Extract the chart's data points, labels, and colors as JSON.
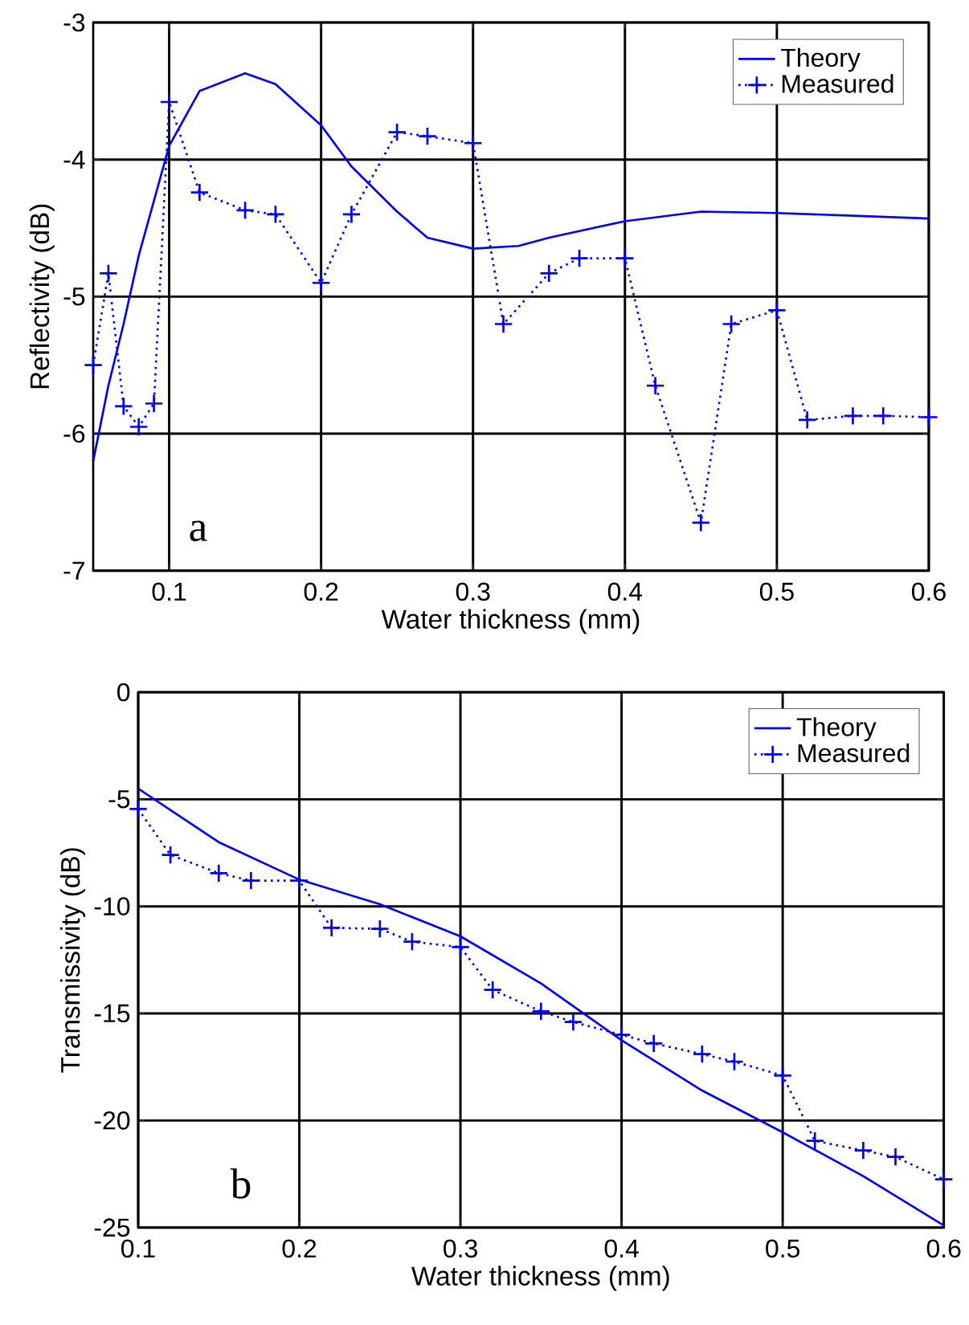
{
  "chart_data": [
    {
      "type": "line",
      "xlabel": "Water thickness (mm)",
      "ylabel": "Reflectivity (dB)",
      "xlim": [
        0.05,
        0.6
      ],
      "ylim": [
        -7,
        -3
      ],
      "xticks": [
        0.1,
        0.2,
        0.3,
        0.4,
        0.5,
        0.6
      ],
      "yticks": [
        -7,
        -6,
        -5,
        -4,
        -3
      ],
      "grid": true,
      "legend": "top right",
      "annotations": [
        "a"
      ],
      "series": [
        {
          "name": "Theory",
          "color": "#0000ff",
          "line_style": "solid",
          "marker": "none",
          "x": [
            0.05,
            0.06,
            0.07,
            0.08,
            0.09,
            0.1,
            0.12,
            0.15,
            0.17,
            0.2,
            0.22,
            0.25,
            0.27,
            0.3,
            0.33,
            0.35,
            0.4,
            0.45,
            0.5,
            0.55,
            0.6
          ],
          "values": [
            -6.2,
            -5.65,
            -5.2,
            -4.7,
            -4.3,
            -3.9,
            -3.5,
            -3.37,
            -3.45,
            -3.75,
            -4.05,
            -4.38,
            -4.57,
            -4.65,
            -4.63,
            -4.57,
            -4.45,
            -4.38,
            -4.39,
            -4.41,
            -4.43
          ]
        },
        {
          "name": "Measured",
          "color": "#0000ff",
          "line_style": "dotted",
          "marker": "cross",
          "x": [
            0.05,
            0.06,
            0.07,
            0.08,
            0.09,
            0.1,
            0.12,
            0.15,
            0.17,
            0.2,
            0.22,
            0.25,
            0.27,
            0.3,
            0.32,
            0.35,
            0.37,
            0.4,
            0.42,
            0.45,
            0.47,
            0.5,
            0.52,
            0.55,
            0.57,
            0.6
          ],
          "values": [
            -5.5,
            -4.83,
            -5.8,
            -5.95,
            -5.78,
            -3.58,
            -4.24,
            -4.37,
            -4.4,
            -4.9,
            -4.4,
            -3.8,
            -3.83,
            -3.88,
            -5.2,
            -4.83,
            -4.72,
            -4.72,
            -5.65,
            -6.65,
            -5.2,
            -5.1,
            -5.9,
            -5.87,
            -5.87,
            -5.88
          ]
        }
      ]
    },
    {
      "type": "line",
      "xlabel": "Water thickness (mm)",
      "ylabel": "Transmissivity (dB)",
      "xlim": [
        0.1,
        0.6
      ],
      "ylim": [
        -25,
        0
      ],
      "xticks": [
        0.1,
        0.2,
        0.3,
        0.4,
        0.5,
        0.6
      ],
      "yticks": [
        -25,
        -20,
        -15,
        -10,
        -5,
        0
      ],
      "grid": true,
      "legend": "top right",
      "annotations": [
        "b"
      ],
      "series": [
        {
          "name": "Theory",
          "color": "#0000ff",
          "line_style": "solid",
          "marker": "none",
          "x": [
            0.1,
            0.15,
            0.2,
            0.25,
            0.3,
            0.35,
            0.4,
            0.45,
            0.5,
            0.55,
            0.6
          ],
          "values": [
            -4.5,
            -7,
            -8.75,
            -9.9,
            -11.4,
            -13.6,
            -16.25,
            -18.6,
            -20.55,
            -22.6,
            -24.9
          ]
        },
        {
          "name": "Measured",
          "color": "#0000ff",
          "line_style": "dotted",
          "marker": "cross",
          "x": [
            0.1,
            0.12,
            0.15,
            0.17,
            0.2,
            0.22,
            0.25,
            0.27,
            0.3,
            0.32,
            0.35,
            0.37,
            0.4,
            0.42,
            0.45,
            0.47,
            0.5,
            0.52,
            0.55,
            0.57,
            0.6
          ],
          "values": [
            -5.45,
            -7.6,
            -8.45,
            -8.8,
            -8.8,
            -11.0,
            -11.05,
            -11.65,
            -11.9,
            -13.9,
            -14.9,
            -15.4,
            -16.0,
            -16.4,
            -16.9,
            -17.25,
            -17.9,
            -20.95,
            -21.4,
            -21.7,
            -22.75
          ]
        }
      ]
    }
  ]
}
